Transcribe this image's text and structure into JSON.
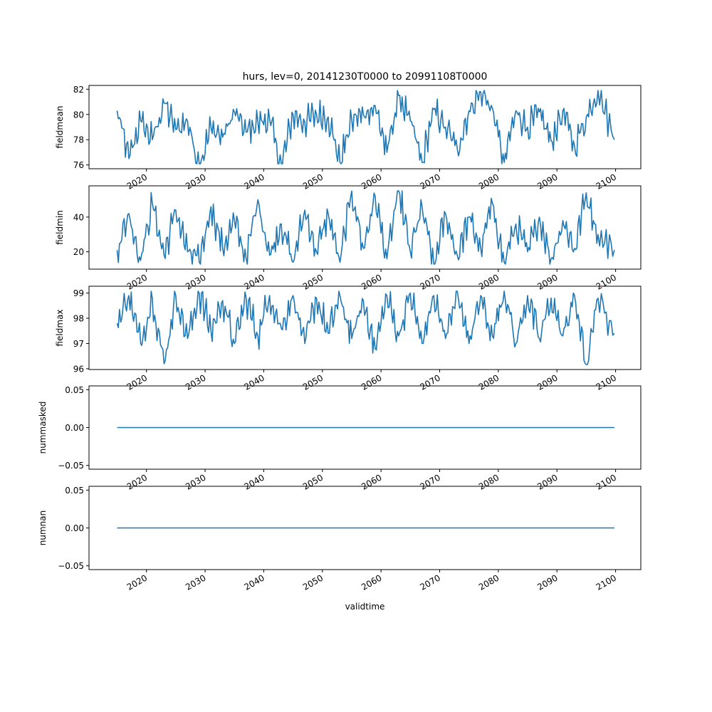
{
  "figure": {
    "title": "hurs, lev=0, 20141230T0000 to 20991108T0000",
    "xlabel": "validtime"
  },
  "colors": {
    "line": "#1f77b4",
    "axis": "#000000",
    "background": "#ffffff"
  },
  "chart_data": [
    {
      "type": "line",
      "ylabel": "fieldmean",
      "xlim": [
        2010.2,
        2104.3
      ],
      "ylim": [
        75.7,
        82.3
      ],
      "yticks": [
        76,
        78,
        80,
        82
      ],
      "ytick_labels": [
        "76",
        "78",
        "80",
        "82"
      ],
      "xticks": [
        2020,
        2030,
        2040,
        2050,
        2060,
        2070,
        2080,
        2090,
        2100
      ],
      "xtick_labels": [
        "2020",
        "2030",
        "2040",
        "2050",
        "2060",
        "2070",
        "2080",
        "2090",
        "2100"
      ],
      "grid": false,
      "series": [
        {
          "x": [
            2015,
            2017,
            2019,
            2021,
            2023,
            2025,
            2027,
            2029,
            2031,
            2033,
            2035,
            2037,
            2039,
            2041,
            2043,
            2045,
            2047,
            2049,
            2051,
            2053,
            2055,
            2057,
            2059,
            2061,
            2063,
            2065,
            2067,
            2069,
            2071,
            2073,
            2075,
            2077,
            2079,
            2081,
            2083,
            2085,
            2087,
            2089,
            2091,
            2093,
            2095,
            2097,
            2099.8
          ],
          "y": [
            80.3,
            76.5,
            79.5,
            78.0,
            80.9,
            78.8,
            79.5,
            75.8,
            79.0,
            78.2,
            80.2,
            78.6,
            79.4,
            79.6,
            75.9,
            80.0,
            79.4,
            80.0,
            79.8,
            76.2,
            79.6,
            80.0,
            80.7,
            77.0,
            81.5,
            79.5,
            76.2,
            80.4,
            79.0,
            77.3,
            80.3,
            81.8,
            80.5,
            76.2,
            80.3,
            79.0,
            80.2,
            77.9,
            80.3,
            77.5,
            79.8,
            82.0,
            78.0
          ]
        }
      ]
    },
    {
      "type": "line",
      "ylabel": "fieldmin",
      "xlim": [
        2010.2,
        2104.3
      ],
      "ylim": [
        10.0,
        58.0
      ],
      "yticks": [
        20,
        40
      ],
      "ytick_labels": [
        "20",
        "40"
      ],
      "xticks": [
        2020,
        2030,
        2040,
        2050,
        2060,
        2070,
        2080,
        2090,
        2100
      ],
      "xtick_labels": [
        "2020",
        "2030",
        "2040",
        "2050",
        "2060",
        "2070",
        "2080",
        "2090",
        "2100"
      ],
      "grid": false,
      "series": [
        {
          "x": [
            2015,
            2017,
            2019,
            2021,
            2023,
            2025,
            2027,
            2029,
            2031,
            2033,
            2035,
            2037,
            2039,
            2041,
            2043,
            2045,
            2047,
            2049,
            2051,
            2053,
            2055,
            2057,
            2059,
            2061,
            2063,
            2065,
            2067,
            2069,
            2071,
            2073,
            2075,
            2077,
            2079,
            2081,
            2083,
            2085,
            2087,
            2089,
            2091,
            2093,
            2095,
            2097,
            2099.8
          ],
          "y": [
            21,
            42,
            15,
            48,
            18,
            44,
            20,
            14,
            46,
            22,
            38,
            16,
            50,
            18,
            36,
            14,
            44,
            20,
            42,
            14,
            55,
            22,
            52,
            16,
            56,
            20,
            46,
            12,
            42,
            18,
            40,
            22,
            48,
            14,
            36,
            20,
            40,
            16,
            38,
            22,
            54,
            30,
            21
          ]
        }
      ]
    },
    {
      "type": "line",
      "ylabel": "fieldmax",
      "xlim": [
        2010.2,
        2104.3
      ],
      "ylim": [
        95.97,
        99.27
      ],
      "yticks": [
        96,
        97,
        98,
        99
      ],
      "ytick_labels": [
        "96",
        "97",
        "98",
        "99"
      ],
      "xticks": [
        2020,
        2030,
        2040,
        2050,
        2060,
        2070,
        2080,
        2090,
        2100
      ],
      "xtick_labels": [
        "2020",
        "2030",
        "2040",
        "2050",
        "2060",
        "2070",
        "2080",
        "2090",
        "2100"
      ],
      "grid": false,
      "series": [
        {
          "x": [
            2015,
            2017,
            2019,
            2021,
            2023,
            2025,
            2027,
            2029,
            2031,
            2033,
            2035,
            2037,
            2039,
            2041,
            2043,
            2045,
            2047,
            2049,
            2051,
            2053,
            2055,
            2057,
            2059,
            2061,
            2063,
            2065,
            2067,
            2069,
            2071,
            2073,
            2075,
            2077,
            2079,
            2081,
            2083,
            2085,
            2087,
            2089,
            2091,
            2093,
            2095,
            2097,
            2099.8
          ],
          "y": [
            97.8,
            98.9,
            97.0,
            98.8,
            96.2,
            98.9,
            97.2,
            99.0,
            97.5,
            98.7,
            97.0,
            98.8,
            97.3,
            98.9,
            97.6,
            98.9,
            97.0,
            98.8,
            97.4,
            98.9,
            97.2,
            98.7,
            96.8,
            98.9,
            97.3,
            99.0,
            97.0,
            98.9,
            97.2,
            99.2,
            97.0,
            98.9,
            97.3,
            99.2,
            97.0,
            98.9,
            97.2,
            98.8,
            97.3,
            98.9,
            96.1,
            98.8,
            97.4
          ]
        }
      ]
    },
    {
      "type": "line",
      "ylabel": "nummasked",
      "xlim": [
        2010.2,
        2104.3
      ],
      "ylim": [
        -0.055,
        0.055
      ],
      "yticks": [
        -0.05,
        0.0,
        0.05
      ],
      "ytick_labels": [
        "−0.05",
        "0.00",
        "0.05"
      ],
      "xticks": [
        2020,
        2030,
        2040,
        2050,
        2060,
        2070,
        2080,
        2090,
        2100
      ],
      "xtick_labels": [
        "2020",
        "2030",
        "2040",
        "2050",
        "2060",
        "2070",
        "2080",
        "2090",
        "2100"
      ],
      "grid": false,
      "series": [
        {
          "x": [
            2015,
            2099.8
          ],
          "y": [
            0.0,
            0.0
          ]
        }
      ]
    },
    {
      "type": "line",
      "ylabel": "numnan",
      "xlim": [
        2010.2,
        2104.3
      ],
      "ylim": [
        -0.055,
        0.055
      ],
      "yticks": [
        -0.05,
        0.0,
        0.05
      ],
      "ytick_labels": [
        "−0.05",
        "0.00",
        "0.05"
      ],
      "xticks": [
        2020,
        2030,
        2040,
        2050,
        2060,
        2070,
        2080,
        2090,
        2100
      ],
      "xtick_labels": [
        "2020",
        "2030",
        "2040",
        "2050",
        "2060",
        "2070",
        "2080",
        "2090",
        "2100"
      ],
      "grid": false,
      "series": [
        {
          "x": [
            2015,
            2099.8
          ],
          "y": [
            0.0,
            0.0
          ]
        }
      ]
    }
  ]
}
